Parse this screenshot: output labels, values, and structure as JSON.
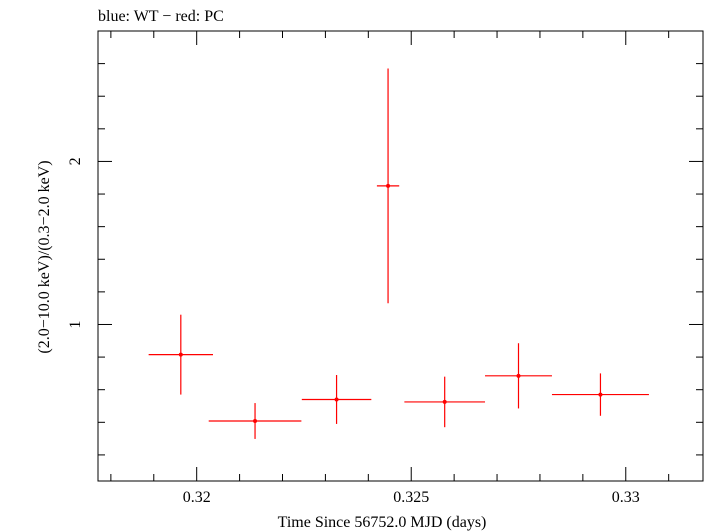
{
  "chart_data": {
    "type": "scatter",
    "title": "blue: WT − red: PC",
    "xlabel": "Time Since 56752.0 MJD (days)",
    "ylabel": "(2.0−10.0 keV)/(0.3−2.0 keV)",
    "xlim": [
      0.3177,
      0.3318
    ],
    "ylim": [
      0.04,
      2.8
    ],
    "x_ticks": [
      {
        "value": 0.32,
        "label": "0.32"
      },
      {
        "value": 0.325,
        "label": "0.325"
      },
      {
        "value": 0.33,
        "label": "0.33"
      }
    ],
    "y_ticks": [
      {
        "value": 1,
        "label": "1"
      },
      {
        "value": 2,
        "label": "2"
      }
    ],
    "grid": false,
    "series": [
      {
        "color": "#ff0000",
        "points": [
          {
            "x": 0.31963,
            "y": 0.815,
            "xerr": 0.00075,
            "yerr_low": 0.245,
            "yerr_high": 0.245
          },
          {
            "x": 0.32136,
            "y": 0.408,
            "xerr": 0.00108,
            "yerr_low": 0.11,
            "yerr_high": 0.11
          },
          {
            "x": 0.32326,
            "y": 0.54,
            "xerr": 0.00081,
            "yerr_low": 0.15,
            "yerr_high": 0.15
          },
          {
            "x": 0.32446,
            "y": 1.85,
            "xerr": 0.00026,
            "yerr_low": 0.72,
            "yerr_high": 0.72
          },
          {
            "x": 0.32578,
            "y": 0.525,
            "xerr": 0.00094,
            "yerr_low": 0.155,
            "yerr_high": 0.155
          },
          {
            "x": 0.3275,
            "y": 0.685,
            "xerr": 0.00078,
            "yerr_low": 0.2,
            "yerr_high": 0.2
          },
          {
            "x": 0.32941,
            "y": 0.57,
            "xerr": 0.00113,
            "yerr_low": 0.13,
            "yerr_high": 0.13
          }
        ]
      }
    ]
  }
}
